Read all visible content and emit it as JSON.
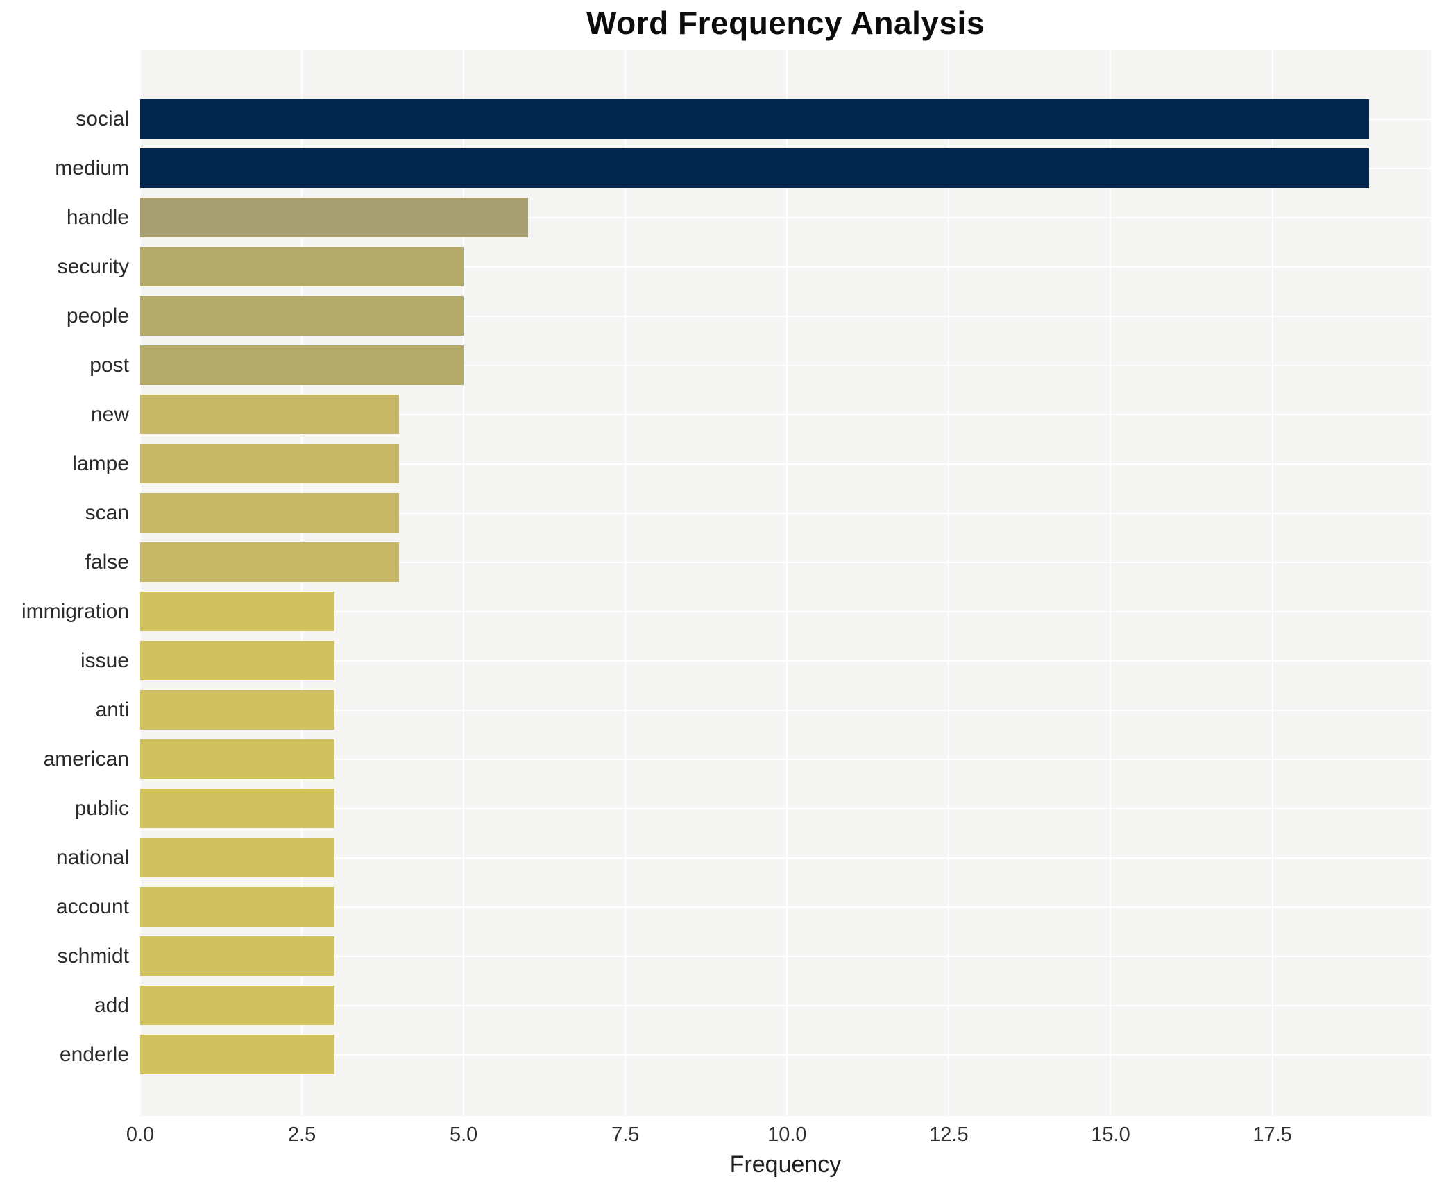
{
  "chart_data": {
    "type": "bar",
    "orientation": "horizontal",
    "title": "Word Frequency Analysis",
    "xlabel": "Frequency",
    "ylabel": "",
    "categories": [
      "social",
      "medium",
      "handle",
      "security",
      "people",
      "post",
      "new",
      "lampe",
      "scan",
      "false",
      "immigration",
      "issue",
      "anti",
      "american",
      "public",
      "national",
      "account",
      "schmidt",
      "add",
      "enderle"
    ],
    "values": [
      19,
      19,
      6,
      5,
      5,
      5,
      4,
      4,
      4,
      4,
      3,
      3,
      3,
      3,
      3,
      3,
      3,
      3,
      3,
      3
    ],
    "xlim": [
      0,
      19.95
    ],
    "xticks": [
      0,
      2.5,
      5,
      7.5,
      10,
      12.5,
      15,
      17.5
    ],
    "xtick_labels": [
      "0.0",
      "2.5",
      "5.0",
      "7.5",
      "10.0",
      "12.5",
      "15.0",
      "17.5"
    ],
    "grid": true,
    "legend": false,
    "colors": {
      "plot_background": "#f5f5f4",
      "page_background": "#ffffff",
      "gridline": "#ffffff",
      "text": "#2a2a2a",
      "value_color_map": {
        "19": "#03264f",
        "6": "#a79e71",
        "5": "#b3aa6a",
        "4": "#c5b765",
        "3": "#d2c25f"
      }
    }
  }
}
